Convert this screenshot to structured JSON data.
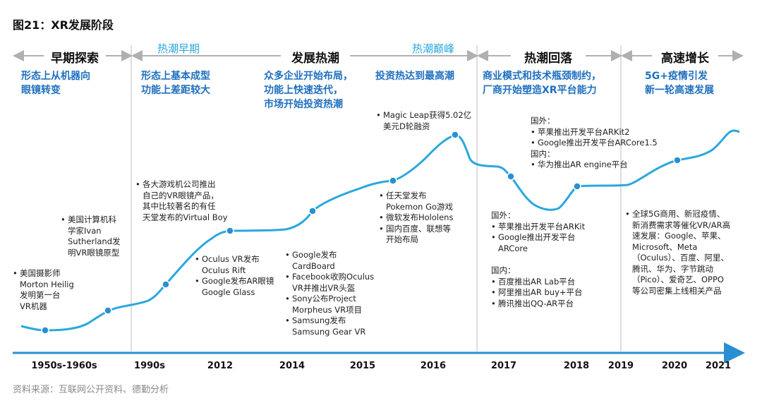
{
  "figure": {
    "title": "图21：XR发展阶段",
    "source": "资料来源：互联网公开资料、德勤分析"
  },
  "phases": [
    {
      "label": "早期探索",
      "description": [
        "形态上从机器向",
        "眼镜转变"
      ]
    },
    {
      "label": "热潮早期",
      "description": [
        "形态上基本成型",
        "功能上差距较大"
      ]
    },
    {
      "label": "发展热潮",
      "description": [
        "众多企业开始布局，",
        "功能上快速迭代，",
        "市场开始投资热潮"
      ]
    },
    {
      "label": "热潮巅峰",
      "description": [
        "投资热达到最高潮"
      ]
    },
    {
      "label": "热潮回落",
      "description": [
        "商业模式和技术瓶颈制约，",
        "厂商开始塑造XR平台能力"
      ]
    },
    {
      "label": "高速增长",
      "description": [
        "5G+疫情引发",
        "新一轮高速发展"
      ]
    }
  ],
  "timeline_ticks": [
    "1950s-1960s",
    "1990s",
    "2012",
    "2014",
    "2015",
    "2016",
    "2017",
    "2018",
    "2019",
    "2020",
    "2021"
  ],
  "annotations": {
    "heilig": [
      "美国摄影师",
      "Morton Heilig",
      "发明第一台",
      "VR机器"
    ],
    "sutherland": [
      "美国计算机科",
      "学家Ivan",
      "Sutherland发",
      "明VR眼镜原型"
    ],
    "virtual_boy": [
      "各大游戏机公司推出",
      "自己的VR眼镜产品，",
      "其中比较著名的有任",
      "天堂发布的Virtual Boy"
    ],
    "oculus": [
      [
        "Oculus VR发布",
        "Oculus Rift"
      ],
      [
        "Google发布AR眼镜",
        "Google Glass"
      ]
    ],
    "cardboard": [
      [
        "Google发布",
        "CardBoard"
      ],
      [
        "Facebook收购Oculus",
        "VR并推出VR头盔"
      ],
      [
        "Sony公布Project",
        "Morpheus VR项目"
      ],
      [
        "Samsung发布",
        "Samsung Gear VR"
      ]
    ],
    "pokemon": [
      [
        "任天堂发布",
        "Pokemon Go游戏"
      ],
      [
        "微软发布Hololens"
      ],
      [
        "国内百度、联想等",
        "开始布局"
      ]
    ],
    "magic_leap": [
      "Magic Leap获得5.02亿",
      "美元D轮融资"
    ],
    "arkit2": {
      "foreign_label": "国外：",
      "foreign_items": [
        "苹果推出开发平台ARKit2",
        "Google推出开发平台ARCore1.5"
      ],
      "domestic_label": "国内：",
      "domestic_items": [
        "华为推出AR engine平台"
      ]
    },
    "arkit": {
      "foreign_label": "国外：",
      "foreign_items": [
        [
          "苹果推出开发平台ARKit"
        ],
        [
          "Google推出开发平台",
          "ARCore"
        ]
      ],
      "domestic_label": "国内：",
      "domestic_items": [
        "百度推出AR Lab平台",
        "阿里推出AR buy+平台",
        "腾讯推出QQ-AR平台"
      ]
    },
    "fiveg": [
      "全球5G商用、新冠疫情、",
      "新消费需求等催化VR/AR高",
      "速发展：Google、苹果、",
      "Microsoft、Meta",
      "（Oculus）、百度、阿里、",
      "腾讯、华为、字节跳动",
      "（Pico）、爱奇艺、OPPO",
      "等公司密集上线相关产品"
    ]
  },
  "colors": {
    "curve": "#2aa7dd",
    "marker": "#2a8fd0",
    "axis": "#2a8fd0",
    "phase_arrow": "#b0b0b0",
    "description": "#1f6fbf",
    "subphase": "#2aa7dd",
    "source": "#8a8a8a"
  }
}
